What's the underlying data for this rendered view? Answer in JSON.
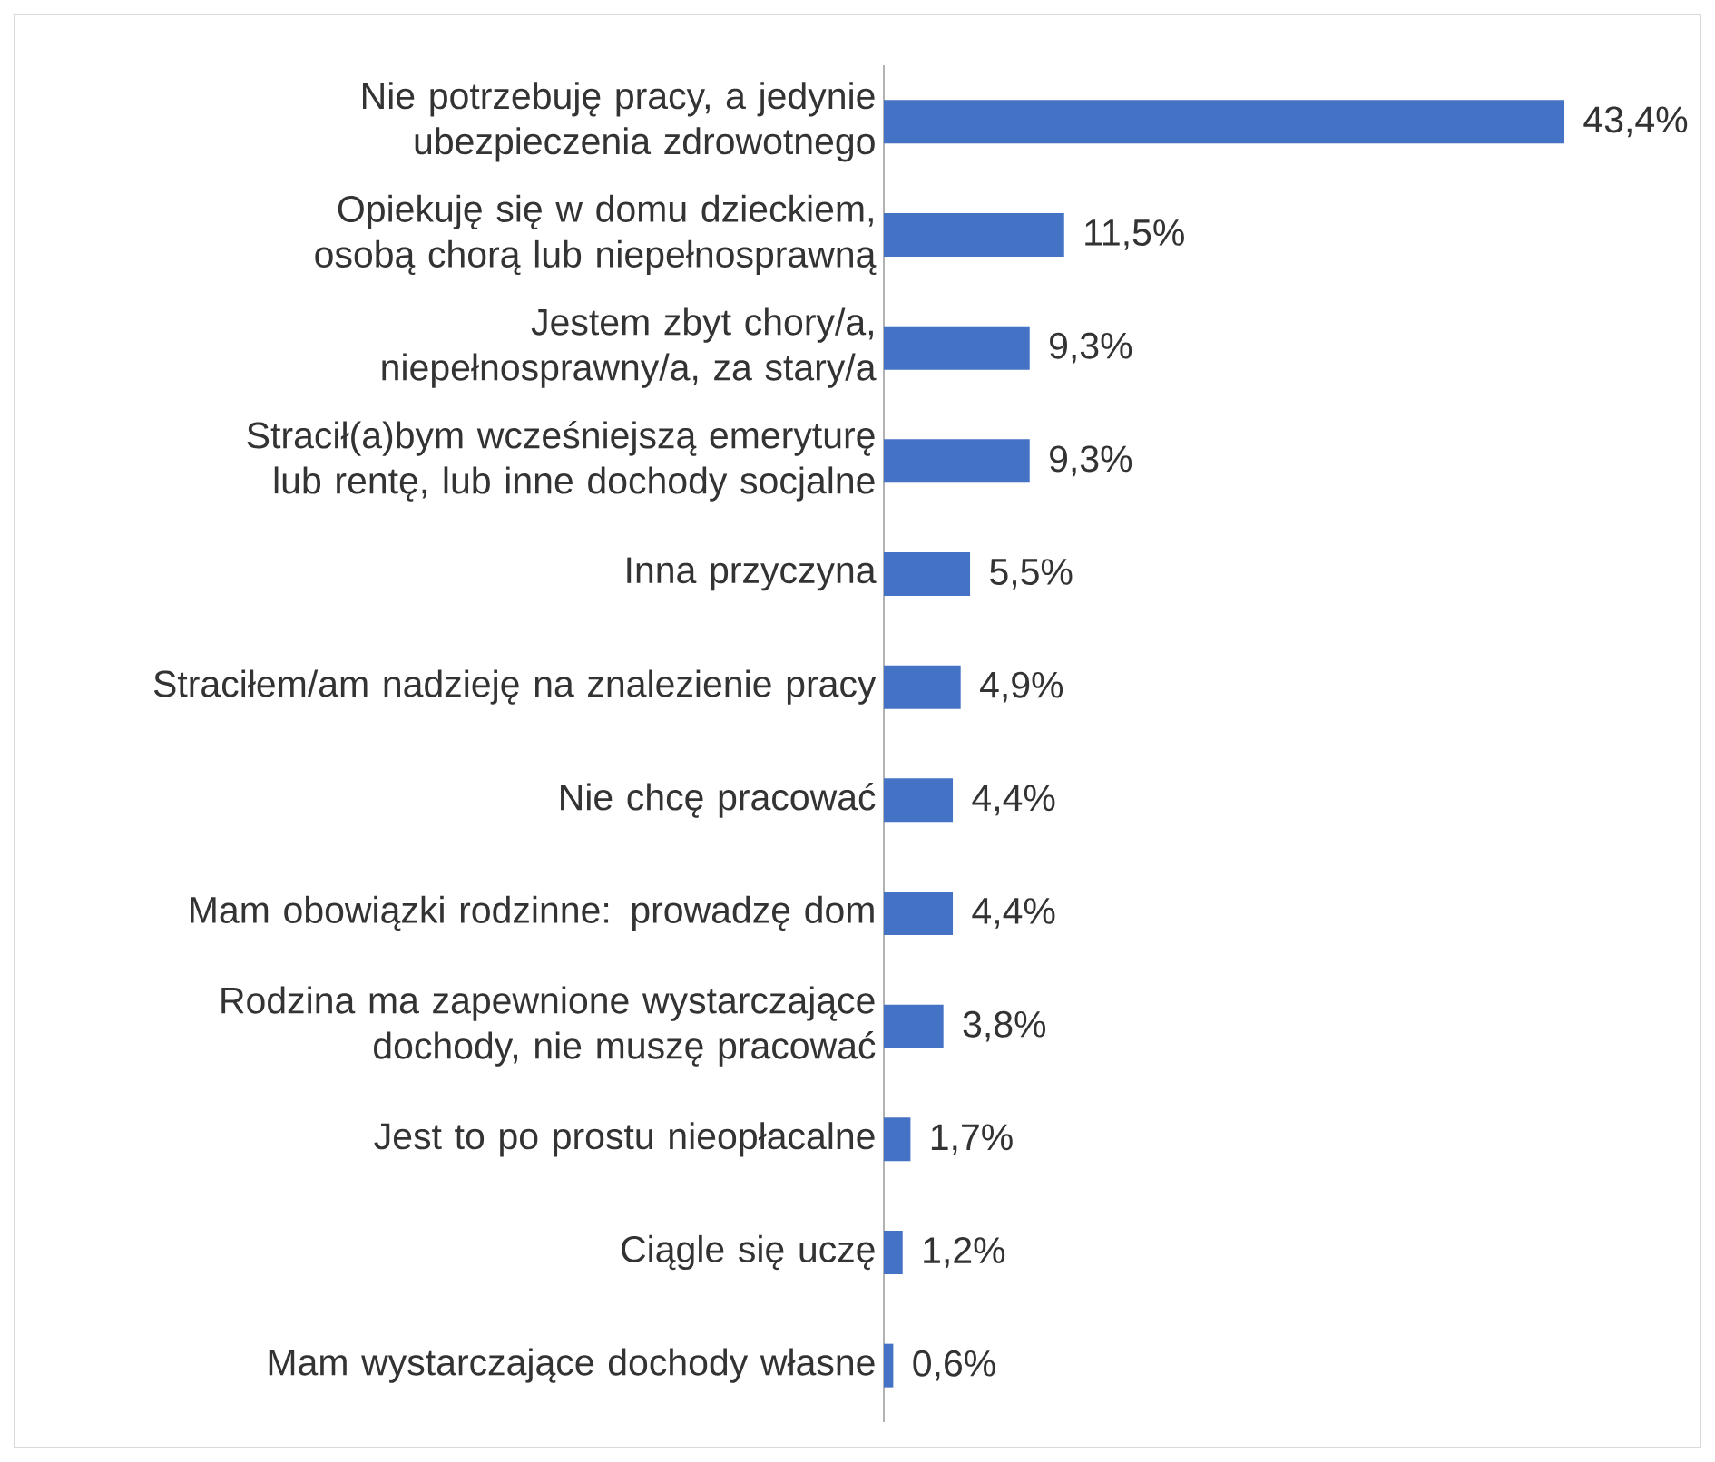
{
  "chart_data": {
    "type": "bar",
    "orientation": "horizontal",
    "categories": [
      "Nie potrzebuję pracy, a jedynie ubezpieczenia zdrowotnego",
      "Opiekuję się w domu dzieckiem, osobą chorą lub niepełnosprawną",
      "Jestem zbyt chory/a, niepełnosprawny/a, za stary/a",
      "Stracił(a)bym wcześniejszą emeryturę lub rentę, lub inne dochody socjalne",
      "Inna przyczyna",
      "Straciłem/am nadzieję na znalezienie pracy",
      "Nie chcę pracować",
      "Mam obowiązki rodzinne: prowadzę dom",
      "Rodzina ma zapewnione wystarczające dochody, nie muszę pracować",
      "Jest to po prostu nieopłacalne",
      "Ciągle się uczę",
      "Mam wystarczające dochody własne"
    ],
    "values": [
      43.4,
      11.5,
      9.3,
      9.3,
      5.5,
      4.9,
      4.4,
      4.4,
      3.8,
      1.7,
      1.2,
      0.6
    ],
    "value_labels": [
      "43,4%",
      "11,5%",
      "9,3%",
      "9,3%",
      "5,5%",
      "4,9%",
      "4,4%",
      "4,4%",
      "3,8%",
      "1,7%",
      "1,2%",
      "0,6%"
    ],
    "color": "#4472c4"
  }
}
